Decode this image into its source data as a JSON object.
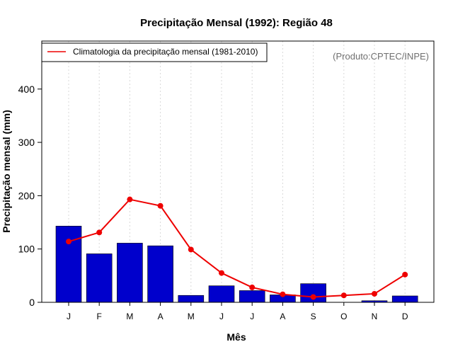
{
  "chart_data": {
    "type": "bar",
    "title": "Precipitação Mensal (1992): Região 48",
    "xlabel": "Mês",
    "ylabel": "Precipitação mensal (mm)",
    "categories": [
      "J",
      "F",
      "M",
      "A",
      "M",
      "J",
      "J",
      "A",
      "S",
      "O",
      "N",
      "D"
    ],
    "ylim": [
      0,
      490
    ],
    "yticks": [
      0,
      100,
      200,
      300,
      400
    ],
    "grid": "vertical dotted",
    "series": [
      {
        "name": "Precipitação mensal 1992",
        "type": "bar",
        "color": "#0000cc",
        "values": [
          143,
          91,
          111,
          106,
          13,
          31,
          22,
          14,
          35,
          0,
          3,
          12
        ]
      },
      {
        "name": "Climatologia da precipitação mensal (1981-2010)",
        "type": "line",
        "color": "#ee0000",
        "values": [
          114,
          131,
          193,
          181,
          99,
          55,
          28,
          15,
          10,
          13,
          16,
          52
        ]
      }
    ],
    "legend": {
      "position": "top-left",
      "label": "Climatologia da precipitação mensal (1981-2010)"
    },
    "annotation": "(Produto:CPTEC/INPE)"
  }
}
